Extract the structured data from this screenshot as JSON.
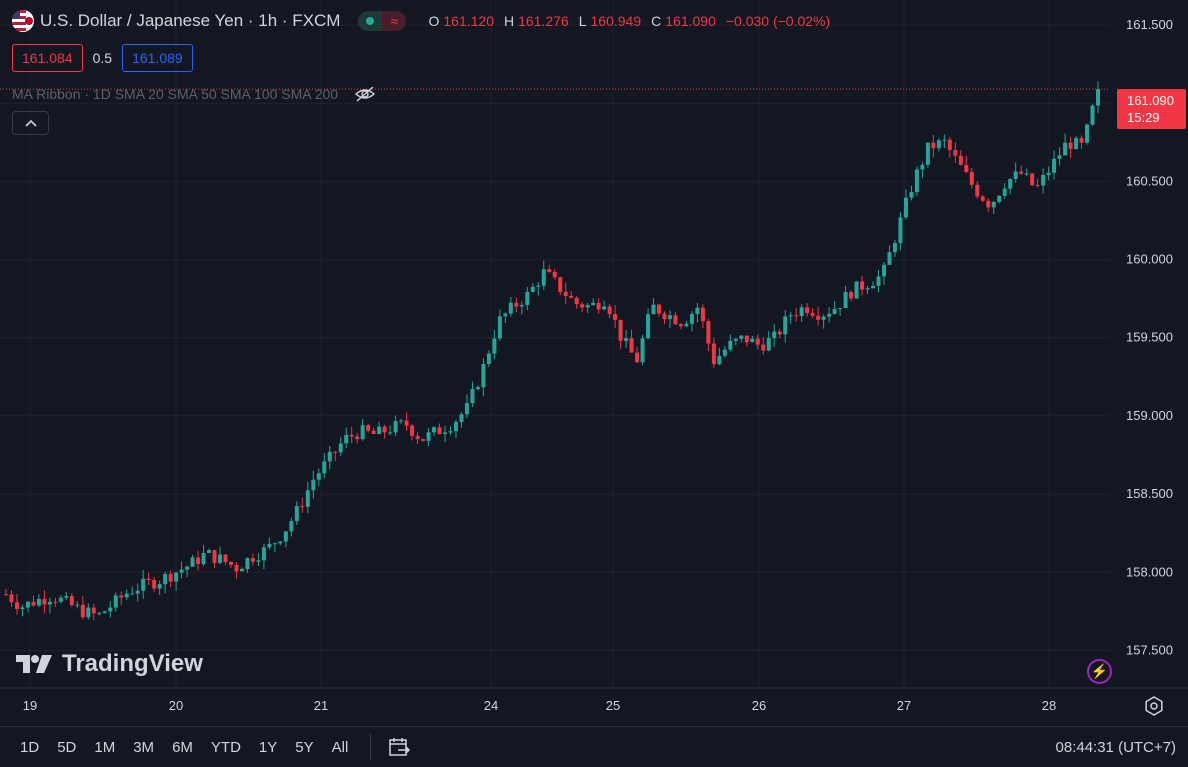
{
  "header": {
    "symbol_title": "U.S. Dollar / Japanese Yen · 1h · FXCM",
    "ohlc": [
      {
        "label": "O",
        "value": "161.120"
      },
      {
        "label": "H",
        "value": "161.276"
      },
      {
        "label": "L",
        "value": "160.949"
      },
      {
        "label": "C",
        "value": "161.090"
      },
      {
        "label": "",
        "value": "−0.030 (−0.02%)"
      }
    ]
  },
  "quote": {
    "sell": "161.084",
    "spread": "0.5",
    "buy": "161.089"
  },
  "indicator": {
    "label": "MA Ribbon · 1D SMA 20 SMA 50 SMA 100 SMA 200"
  },
  "last_price": {
    "price": "161.090",
    "countdown": "15:29"
  },
  "watermark": "TradingView",
  "bottom_bar": {
    "ranges": [
      "1D",
      "5D",
      "1M",
      "3M",
      "6M",
      "YTD",
      "1Y",
      "5Y",
      "All"
    ],
    "clock": "08:44:31 (UTC+7)"
  },
  "colors": {
    "background": "#131722",
    "up": "#26a69a",
    "down": "#f23645",
    "grid": "#1e222d"
  },
  "chart_data": {
    "type": "candlestick",
    "y_ticks": [
      "161.500",
      "161.000",
      "160.500",
      "160.000",
      "159.500",
      "159.000",
      "158.500",
      "158.000",
      "157.500"
    ],
    "y_tick_values": [
      161.5,
      161.0,
      160.5,
      160.0,
      159.5,
      159.0,
      158.5,
      158.0,
      157.5
    ],
    "x_ticks": [
      "19",
      "20",
      "21",
      "24",
      "25",
      "26",
      "27",
      "28"
    ],
    "ylim": [
      157.26,
      161.66
    ],
    "close_path": [
      157.86,
      157.78,
      157.82,
      157.85,
      157.8,
      157.75,
      157.72,
      157.8,
      157.88,
      157.92,
      157.95,
      158.0,
      158.05,
      158.12,
      158.08,
      158.03,
      158.1,
      158.15,
      158.25,
      158.4,
      158.6,
      158.72,
      158.85,
      158.9,
      158.88,
      158.92,
      158.95,
      158.85,
      158.9,
      158.95,
      159.05,
      159.3,
      159.6,
      159.7,
      159.78,
      159.92,
      159.82,
      159.72,
      159.7,
      159.75,
      159.5,
      159.35,
      159.7,
      159.65,
      159.6,
      159.7,
      159.35,
      159.45,
      159.5,
      159.45,
      159.5,
      159.65,
      159.7,
      159.65,
      159.7,
      159.8,
      159.85,
      159.9,
      160.2,
      160.5,
      160.72,
      160.75,
      160.6,
      160.45,
      160.35,
      160.5,
      160.55,
      160.45,
      160.6,
      160.75,
      160.72,
      161.09
    ],
    "last": 161.09
  }
}
